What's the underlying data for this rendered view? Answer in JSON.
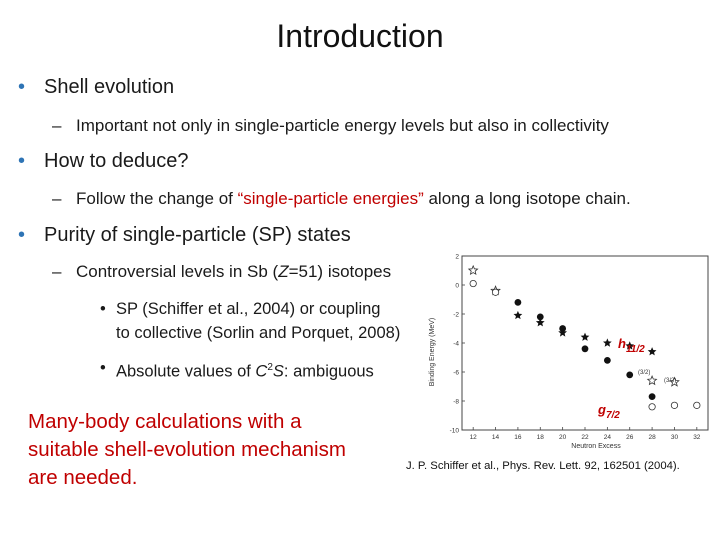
{
  "slide": {
    "title": "Introduction",
    "bullets": [
      {
        "text": "Shell evolution"
      },
      {
        "text": "How to deduce?"
      },
      {
        "text": "Purity of single-particle (SP) states"
      }
    ],
    "sub1": "Important not only in single-particle energy levels but also in collectivity",
    "sub2": {
      "before": "Follow the change of ",
      "highlight": "“single-particle energies”",
      "after": " along a long isotope chain."
    },
    "sub3": {
      "before": "Controversial levels in Sb (",
      "z": "Z",
      "after": "=51) isotopes"
    },
    "sub3a": {
      "line1": "SP (Schiffer et al., 2004) or coupling",
      "line2": "to collective (Sorlin and Porquet, 2008)"
    },
    "sub3b": {
      "before": "Absolute values of ",
      "c": "C",
      "sup": "2",
      "s": "S",
      "after": ": ambiguous"
    },
    "callout": [
      "Many-body calculations with a",
      "suitable shell-evolution mechanism",
      "are needed."
    ],
    "citation": "J. P. Schiffer et al., Phys. Rev. Lett. 92, 162501 (2004)."
  },
  "colors": {
    "bullet": "#2e74b5",
    "highlight": "#c00000",
    "callout": "#c00000"
  },
  "chart_data": {
    "type": "scatter",
    "title": "",
    "xlabel": "Neutron Excess",
    "ylabel": "Binding Energy (MeV)",
    "xlim": [
      11,
      33
    ],
    "ylim": [
      -10,
      2
    ],
    "xticks": [
      12,
      14,
      16,
      18,
      20,
      22,
      24,
      26,
      28,
      30,
      32
    ],
    "yticks": [
      2,
      0,
      -2,
      -4,
      -6,
      -8,
      -10
    ],
    "series": [
      {
        "name": "h11/2 (filled)",
        "marker": "star-filled",
        "x": [
          16,
          18,
          20,
          22,
          24,
          26,
          28
        ],
        "y": [
          -2.1,
          -2.6,
          -3.3,
          -3.6,
          -4.0,
          -4.2,
          -4.6
        ]
      },
      {
        "name": "g7/2 (filled)",
        "marker": "circle-filled",
        "x": [
          16,
          18,
          20,
          22,
          24,
          26,
          28
        ],
        "y": [
          -1.2,
          -2.2,
          -3.0,
          -4.4,
          -5.2,
          -6.2,
          -7.7
        ]
      },
      {
        "name": "h11/2 (open)",
        "marker": "star-open",
        "x": [
          12,
          14,
          28,
          30
        ],
        "y": [
          1.0,
          -0.4,
          -6.6,
          -6.7
        ]
      },
      {
        "name": "g7/2 (open)",
        "marker": "circle-open",
        "x": [
          12,
          14,
          28,
          30,
          32
        ],
        "y": [
          0.1,
          -0.5,
          -8.4,
          -8.3,
          -8.3
        ]
      }
    ],
    "labels": [
      {
        "text": "h11/2",
        "main": "h",
        "sub": "11/2"
      },
      {
        "text": "g7/2",
        "main": "g",
        "sub": "7/2"
      },
      {
        "text": "(3/2)"
      },
      {
        "text": "(3/2)"
      }
    ]
  }
}
